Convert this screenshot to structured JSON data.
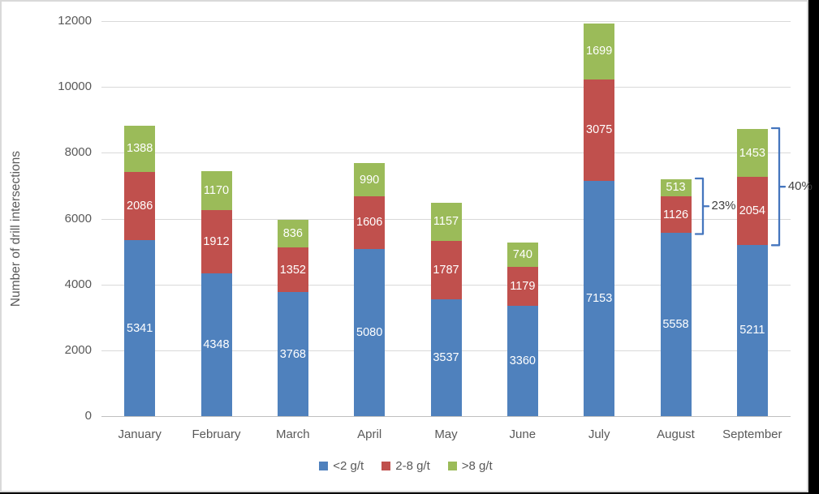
{
  "chart_data": {
    "type": "bar",
    "stacked": true,
    "title": "",
    "xlabel": "",
    "ylabel": "Number of drill intersections",
    "categories": [
      "January",
      "February",
      "March",
      "April",
      "May",
      "June",
      "July",
      "August",
      "September"
    ],
    "series": [
      {
        "name": "<2 g/t",
        "color": "#4f81bd",
        "values": [
          5341,
          4348,
          3768,
          5080,
          3537,
          3360,
          7153,
          5558,
          5211
        ]
      },
      {
        "name": "2-8 g/t",
        "color": "#c0504d",
        "values": [
          2086,
          1912,
          1352,
          1606,
          1787,
          1179,
          3075,
          1126,
          2054
        ]
      },
      {
        "name": ">8 g/t",
        "color": "#9bbb59",
        "values": [
          1388,
          1170,
          836,
          990,
          1157,
          740,
          1699,
          513,
          1453
        ]
      }
    ],
    "ylim": [
      0,
      12000
    ],
    "yticks": [
      0,
      2000,
      4000,
      6000,
      8000,
      10000,
      12000
    ],
    "ytick_labels": [
      "0",
      "2000",
      "4000",
      "6000",
      "8000",
      "10000",
      "12000"
    ],
    "grid": true,
    "legend_position": "bottom",
    "data_labels": "values shown in white, centered inside each segment",
    "annotations": [
      {
        "label": "23%",
        "category": "August",
        "spans": [
          "2-8 g/t",
          ">8 g/t"
        ]
      },
      {
        "label": "40%",
        "category": "September",
        "spans": [
          "2-8 g/t",
          ">8 g/t"
        ]
      }
    ]
  },
  "colors": {
    "bracket": "#4576be",
    "axis_text": "#595959",
    "gridline": "#d9d9d9",
    "zero_line": "#bfbfbf",
    "border": "#d9d9d9",
    "annotation_text": "#404040",
    "data_label_text": "#ffffff"
  }
}
